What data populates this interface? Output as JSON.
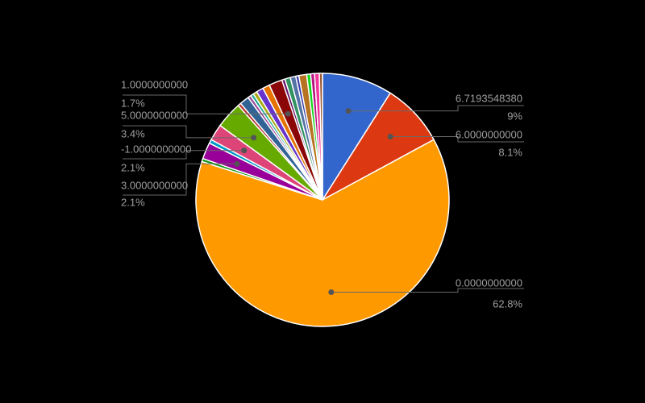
{
  "chart_data": {
    "type": "pie",
    "title": "",
    "background": "#000000",
    "label_color": "#9e9e9e",
    "leader_line_color": "#696969",
    "leader_dot_color": "#545454",
    "slice_border_color": "#ffffff",
    "legend_position": "none",
    "labels_position": "outside-with-leader-lines",
    "slices": [
      {
        "label": "6.7193548380",
        "percent": 9.0,
        "percent_label": "9%",
        "color": "#3366cc",
        "callout": "right"
      },
      {
        "label": "6.0000000000",
        "percent": 8.1,
        "percent_label": "8.1%",
        "color": "#dc3912",
        "callout": "right"
      },
      {
        "label": "0.0000000000",
        "percent": 62.8,
        "percent_label": "62.8%",
        "color": "#ff9900",
        "callout": "right"
      },
      {
        "label": "",
        "percent": 0.4,
        "percent_label": "",
        "color": "#109618",
        "callout": ""
      },
      {
        "label": "3.0000000000",
        "percent": 2.1,
        "percent_label": "2.1%",
        "color": "#990099",
        "callout": "left"
      },
      {
        "label": "",
        "percent": 0.5,
        "percent_label": "",
        "color": "#0099c6",
        "callout": ""
      },
      {
        "label": "-1.0000000000",
        "percent": 2.1,
        "percent_label": "2.1%",
        "color": "#dd4477",
        "callout": "left"
      },
      {
        "label": "5.0000000000",
        "percent": 3.4,
        "percent_label": "3.4%",
        "color": "#66aa00",
        "callout": "left"
      },
      {
        "label": "",
        "percent": 0.4,
        "percent_label": "",
        "color": "#b82e2e",
        "callout": ""
      },
      {
        "label": "",
        "percent": 1.2,
        "percent_label": "",
        "color": "#316395",
        "callout": ""
      },
      {
        "label": "",
        "percent": 0.4,
        "percent_label": "",
        "color": "#994499",
        "callout": ""
      },
      {
        "label": "",
        "percent": 0.4,
        "percent_label": "",
        "color": "#22aa99",
        "callout": ""
      },
      {
        "label": "",
        "percent": 0.5,
        "percent_label": "",
        "color": "#aaaa11",
        "callout": ""
      },
      {
        "label": "",
        "percent": 0.9,
        "percent_label": "",
        "color": "#6633cc",
        "callout": ""
      },
      {
        "label": "",
        "percent": 0.9,
        "percent_label": "",
        "color": "#e67300",
        "callout": ""
      },
      {
        "label": "1.0000000000",
        "percent": 1.7,
        "percent_label": "1.7%",
        "color": "#8b0707",
        "callout": "left"
      },
      {
        "label": "",
        "percent": 0.4,
        "percent_label": "",
        "color": "#651067",
        "callout": ""
      },
      {
        "label": "",
        "percent": 0.7,
        "percent_label": "",
        "color": "#329262",
        "callout": ""
      },
      {
        "label": "",
        "percent": 0.7,
        "percent_label": "",
        "color": "#5574a6",
        "callout": ""
      },
      {
        "label": "",
        "percent": 0.4,
        "percent_label": "",
        "color": "#3b3eac",
        "callout": ""
      },
      {
        "label": "",
        "percent": 1.0,
        "percent_label": "",
        "color": "#b77322",
        "callout": ""
      },
      {
        "label": "",
        "percent": 0.5,
        "percent_label": "",
        "color": "#16d620",
        "callout": ""
      },
      {
        "label": "",
        "percent": 0.5,
        "percent_label": "",
        "color": "#b91383",
        "callout": ""
      },
      {
        "label": "",
        "percent": 0.6,
        "percent_label": "",
        "color": "#f4359e",
        "callout": ""
      },
      {
        "label": "",
        "percent": 0.4,
        "percent_label": "",
        "color": "#9c5935",
        "callout": ""
      }
    ]
  }
}
